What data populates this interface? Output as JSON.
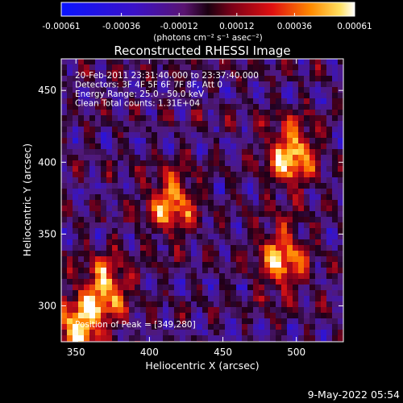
{
  "chart_data": {
    "type": "heatmap",
    "title": "Reconstructed RHESSI Image",
    "xlabel": "Heliocentric X (arcsec)",
    "ylabel": "Heliocentric Y (arcsec)",
    "xlim": [
      340,
      532
    ],
    "ylim": [
      275,
      472
    ],
    "x_ticks": [
      350,
      400,
      450,
      500
    ],
    "y_ticks": [
      300,
      350,
      400,
      450
    ],
    "x_tick_labels": [
      "350",
      "400",
      "450",
      "500"
    ],
    "y_tick_labels": [
      "300",
      "350",
      "400",
      "450"
    ],
    "colorbar": {
      "unit_label": "(photons cm⁻² s⁻¹ asec⁻²)",
      "range": [
        -0.00061,
        0.00061
      ],
      "tick_values": [
        -0.00061,
        -0.00036,
        -0.00012,
        0.00012,
        0.00036,
        0.00061
      ],
      "tick_labels": [
        "-0.00061",
        "-0.00036",
        "-0.00012",
        "0.00012",
        "0.00036",
        "0.00061"
      ]
    },
    "annotations": [
      "20-Feb-2011 23:31:40.000 to 23:37:40.000",
      "Detectors: 3F 4F 5F 6F 7F 8F, Att 0",
      "Energy Range: 25.0 - 50.0 keV",
      "Clean      Total counts: 1.31E+04"
    ],
    "peak_label": "Position of Peak = [349,280]",
    "peak_position": [
      349,
      280
    ],
    "bright_sources": [
      {
        "x": 497,
        "y": 405,
        "level": 1.0
      },
      {
        "x": 490,
        "y": 332,
        "level": 0.9
      },
      {
        "x": 415,
        "y": 372,
        "level": 0.8
      },
      {
        "x": 370,
        "y": 312,
        "level": 0.85
      },
      {
        "x": 352,
        "y": 283,
        "level": 1.0
      }
    ]
  },
  "timestamp": "9-May-2022 05:54"
}
